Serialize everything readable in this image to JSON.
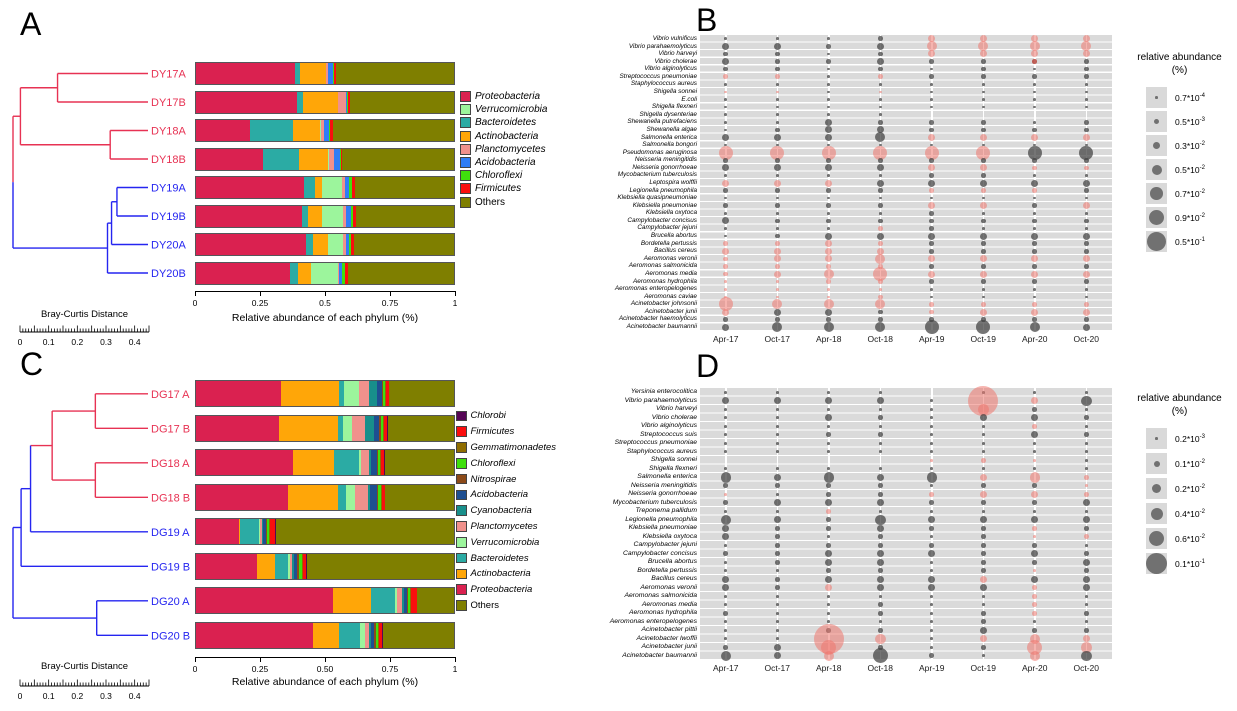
{
  "figure": {
    "panel_letters": {
      "a": "A",
      "b": "B",
      "c": "C",
      "d": "D"
    }
  },
  "chart_data": [
    {
      "id": "dendrogram_A",
      "type": "dendrogram",
      "panel": "A",
      "axis_title": "Bray-Curtis Distance",
      "axis_ticks": [
        "0",
        "0.1",
        "0.2",
        "0.3",
        "0.4"
      ],
      "axis_max": 0.45,
      "leaves": [
        {
          "label": "DY17A",
          "color": "#E73253"
        },
        {
          "label": "DY17B",
          "color": "#E73253"
        },
        {
          "label": "DY18A",
          "color": "#E73253"
        },
        {
          "label": "DY18B",
          "color": "#E73253"
        },
        {
          "label": "DY19A",
          "color": "#2525F0"
        },
        {
          "label": "DY19B",
          "color": "#2525F0"
        },
        {
          "label": "DY20A",
          "color": "#2525F0"
        },
        {
          "label": "DY20B",
          "color": "#2525F0"
        }
      ],
      "merges": [
        {
          "a": 0,
          "b": 1,
          "x": 0.33,
          "color": "#E73253"
        },
        {
          "a": 2,
          "b": 3,
          "x": 0.72,
          "color": "#E73253"
        },
        {
          "a": -1,
          "b": -2,
          "x": 0.055,
          "color": "#E73253"
        },
        {
          "a": 4,
          "b": 5,
          "x": 0.77,
          "color": "#2525F0"
        },
        {
          "a": -4,
          "b": 6,
          "x": 0.73,
          "color": "#2525F0"
        },
        {
          "a": -5,
          "b": 7,
          "x": 0.7,
          "color": "#2525F0"
        },
        {
          "a": -3,
          "b": -6,
          "x": 0.0,
          "color": "split"
        }
      ]
    },
    {
      "id": "bars_A",
      "type": "bar",
      "stacked": true,
      "orientation": "horizontal",
      "panel": "A",
      "categories": [
        "DY17A",
        "DY17B",
        "DY18A",
        "DY18B",
        "DY19A",
        "DY19B",
        "DY20A",
        "DY20B"
      ],
      "series": [
        {
          "name": "Proteobacteria",
          "color": "#DA2150",
          "values": [
            0.385,
            0.39,
            0.21,
            0.26,
            0.42,
            0.41,
            0.425,
            0.365
          ]
        },
        {
          "name": "Bacteroidetes",
          "color": "#2BABA4",
          "values": [
            0.02,
            0.025,
            0.165,
            0.14,
            0.04,
            0.025,
            0.03,
            0.03
          ]
        },
        {
          "name": "Actinobacteria",
          "color": "#FFA608",
          "values": [
            0.1,
            0.135,
            0.105,
            0.11,
            0.03,
            0.055,
            0.055,
            0.05
          ]
        },
        {
          "name": "Verrucomicrobia",
          "color": "#9CF59C",
          "values": [
            0.0,
            0.0,
            0.005,
            0.005,
            0.075,
            0.08,
            0.06,
            0.105
          ]
        },
        {
          "name": "Planctomycetes",
          "color": "#F0918C",
          "values": [
            0.005,
            0.03,
            0.013,
            0.02,
            0.012,
            0.012,
            0.012,
            0.005
          ]
        },
        {
          "name": "Acidobacteria",
          "color": "#2F7DF6",
          "values": [
            0.02,
            0.005,
            0.018,
            0.022,
            0.015,
            0.018,
            0.012,
            0.012
          ]
        },
        {
          "name": "Chloroflexi",
          "color": "#3FE00D",
          "values": [
            0.004,
            0.003,
            0.004,
            0.004,
            0.012,
            0.01,
            0.006,
            0.01
          ]
        },
        {
          "name": "Firmicutes",
          "color": "#FA0E0E",
          "values": [
            0.01,
            0.01,
            0.01,
            0.006,
            0.013,
            0.012,
            0.012,
            0.012
          ]
        },
        {
          "name": "Others",
          "color": "#7F7F00",
          "values": [
            0.456,
            0.402,
            0.47,
            0.433,
            0.383,
            0.378,
            0.388,
            0.411
          ]
        }
      ],
      "legend_order": [
        "Proteobacteria",
        "Verrucomicrobia",
        "Bacteroidetes",
        "Actinobacteria",
        "Planctomycetes",
        "Acidobacteria",
        "Chloroflexi",
        "Firmicutes",
        "Others"
      ],
      "x_ticks": [
        "0",
        "0.25",
        "0.5",
        "0.75",
        "1"
      ],
      "xlabel": "Relative abundance of each phylum (%)",
      "xlim": [
        0,
        1
      ]
    },
    {
      "id": "bubbles_B",
      "type": "bubble",
      "panel": "B",
      "x_categories": [
        "Apr-17",
        "Oct-17",
        "Apr-18",
        "Oct-18",
        "Apr-19",
        "Oct-19",
        "Apr-20",
        "Oct-20"
      ],
      "y_categories": [
        "Vibrio vulnificus",
        "Vibrio parahaemolyticus",
        "Vibrio harveyi",
        "Vibrio cholerae",
        "Vibrio alginolyticus",
        "Streptococcus pneumoniae",
        "Staphylococcus aureus",
        "Shigella sonnei",
        "E.coli",
        "Shigella flexneri",
        "Shigella dysenteriae",
        "Shewanella putrefaciens",
        "Shewanella algae",
        "Salmonella enterica",
        "Salmonella bongori",
        "Pseudomonas aeruginosa",
        "Neisseria meningitidis",
        "Neisseria gonorrhoeae",
        "Mycobacterium tuberculosis",
        "Leptospira wolffii",
        "Legionella pneumophila",
        "Klebsiella quasipneumoniae",
        "Klebsiella pneumoniae",
        "Klebsiella oxytoca",
        "Campylobacter concisus",
        "Campylobacter jejuni",
        "Brucella abortus",
        "Bordetella pertussis",
        "Bacillus cereus",
        "Aeromonas veronii",
        "Aeromonas salmonicida",
        "Aeromonas media",
        "Aeromonas hydrophila",
        "Aeromonas enteropelogenes",
        "Aeromonas caviae",
        "Acinetobacter johnsonii",
        "Acinetobacter junii",
        "Acinetobacter haemolyticus",
        "Acinetobacter baumannii"
      ],
      "cells": [
        "1g 1g 1g 2g 3p 3p 3p 3p",
        "3g 3g 2g 3g 4p 4p 4p 4p",
        "2g 2g 1g 2g 3p 3p 3p 3p",
        "3g 2g 2g 3g 2g 2g 2r 2g",
        "2g 2g 1g 2g 1g 2g 1g 2g",
        "2p 2p 1g 2p 2g 2g 2g 2g",
        "1g 1g 1g 1g 1g 1g 1g 1g",
        "1p 1p 1g 1p 1g 1g 1g 1g",
        "1g 1g 1g 1g 1g 1g 1g 1g",
        "1g 1g 1g 1g 1g 1g 1g 1g",
        "1g 1g 1g 1g 0g 0g 0g 0g",
        "1g 1g 3g 2g 2g 2g 1g 2g",
        "1g 2g 3g 3g 2g 2g 2g 2g",
        "3g 3g 3g 4g 3p 3p 3p 3p",
        "1g 1g 1g 1g 1g 1g 1g 1g",
        "5p 5p 5p 5p 5p 5p 5g 5g",
        "2g 2g 2g 2g 2g 2g 2g 2g",
        "3g 3g 3g 3g 3p 3p 2p 2p",
        "1g 1g 1g 1g 2g 2g 1g 1g",
        "3p 3p 3p 3g 3g 3g 3g 3g",
        "2g 2g 2g 2g 2p 2p 2p 2g",
        "1g 1g 1g 1g 1g 1g 1g 1g",
        "2g 2g 2g 2g 3p 3p 2g 3p",
        "1g 1g 1g 1g 2g 1g 1g 1g",
        "3g 2g 2g 2g 2g 2g 2g 2g",
        "1g 1g 1g 2p 2g 1g 1g 1g",
        "1g 2g 3g 3g 3g 3g 3g 3g",
        "2p 2p 3p 2p 2g 2g 2g 2g",
        "3p 3p 3p 3p 2g 2g 2g 2g",
        "2p 3p 3p 4p 3p 3p 3p 3p",
        "2p 2p 2p 2p 2g 2g 2g 2g",
        "2p 3p 4p 5p 3p 3p 3p 3p",
        "1p 1p 2p 2p 2g 2g 2g 2g",
        "1p 1p 1p 1p 1g 1g 1g 1g",
        "1p 1p 1p 2p 1g 1g 1g 1g",
        "5p 4p 4p 4p 2p 2p 2p 2p",
        "3p 3g 3g 2g 2p 3p 3p 3p",
        "2g 2g 2g 2g 2g 2g 2g 2g",
        "3g 4g 4g 4g 5g 5g 4g 3g"
      ],
      "size_classes": {
        "1": 2.6,
        "2": 4.6,
        "3": 7,
        "4": 10,
        "5": 14,
        "6": 20
      },
      "point_colors": {
        "g": "rgba(64,64,64,0.72)",
        "p": "rgba(238,118,110,0.55)",
        "r": "rgba(178,58,48,0.8)"
      },
      "legend": {
        "title": "relative abundance",
        "subtitle": "(%)",
        "labels": [
          [
            "0.7*10",
            "-4"
          ],
          [
            "0.5*10",
            "-3"
          ],
          [
            "0.3*10",
            "-2"
          ],
          [
            "0.5*10",
            "-2"
          ],
          [
            "0.7*10",
            "-2"
          ],
          [
            "0.9*10",
            "-2"
          ],
          [
            "0.5*10",
            "-1"
          ]
        ],
        "diameters": [
          2.6,
          5,
          7.5,
          10,
          12.5,
          15,
          19
        ]
      }
    },
    {
      "id": "dendrogram_C",
      "type": "dendrogram",
      "panel": "C",
      "axis_title": "Bray-Curtis Distance",
      "axis_ticks": [
        "0",
        "0.1",
        "0.2",
        "0.3",
        "0.4"
      ],
      "axis_max": 0.45,
      "leaves": [
        {
          "label": "DG17 A",
          "color": "#E73253"
        },
        {
          "label": "DG17 B",
          "color": "#E73253"
        },
        {
          "label": "DG18 A",
          "color": "#E73253"
        },
        {
          "label": "DG18 B",
          "color": "#E73253"
        },
        {
          "label": "DG19 A",
          "color": "#2525F0"
        },
        {
          "label": "DG19 B",
          "color": "#2525F0"
        },
        {
          "label": "DG20 A",
          "color": "#2525F0"
        },
        {
          "label": "DG20 B",
          "color": "#2525F0"
        }
      ],
      "merges": [
        {
          "a": 0,
          "b": 1,
          "x": 0.61,
          "color": "#E73253"
        },
        {
          "a": 2,
          "b": 3,
          "x": 0.61,
          "color": "#E73253"
        },
        {
          "a": -1,
          "b": -2,
          "x": 0.29,
          "color": "#E73253"
        },
        {
          "a": -3,
          "b": 4,
          "x": 0.13,
          "color": "#2525F0"
        },
        {
          "a": -4,
          "b": 5,
          "x": 0.06,
          "color": "#2525F0"
        },
        {
          "a": 6,
          "b": 7,
          "x": 0.62,
          "color": "#2525F0"
        },
        {
          "a": -5,
          "b": -6,
          "x": 0.0,
          "color": "#2525F0"
        }
      ]
    },
    {
      "id": "bars_C",
      "type": "bar",
      "stacked": true,
      "orientation": "horizontal",
      "panel": "C",
      "categories": [
        "DG17 A",
        "DG17 B",
        "DG18 A",
        "DG18 B",
        "DG19 A",
        "DG19 B",
        "DG20 A",
        "DG20 B"
      ],
      "series": [
        {
          "name": "Proteobacteria",
          "color": "#DA2150",
          "values": [
            0.33,
            0.32,
            0.375,
            0.355,
            0.165,
            0.235,
            0.53,
            0.455
          ]
        },
        {
          "name": "Actinobacteria",
          "color": "#FFA608",
          "values": [
            0.225,
            0.23,
            0.16,
            0.195,
            0.005,
            0.07,
            0.15,
            0.1
          ]
        },
        {
          "name": "Bacteroidetes",
          "color": "#2BABA4",
          "values": [
            0.02,
            0.02,
            0.095,
            0.03,
            0.075,
            0.05,
            0.09,
            0.08
          ]
        },
        {
          "name": "Verrucomicrobia",
          "color": "#9CF59C",
          "values": [
            0.055,
            0.035,
            0.01,
            0.035,
            0.005,
            0.008,
            0.01,
            0.02
          ]
        },
        {
          "name": "Planctomycetes",
          "color": "#F0918C",
          "values": [
            0.04,
            0.05,
            0.03,
            0.05,
            0.005,
            0.008,
            0.02,
            0.015
          ]
        },
        {
          "name": "Cyanobacteria",
          "color": "#188F8B",
          "values": [
            0.03,
            0.035,
            0.01,
            0.01,
            0.005,
            0.01,
            0.008,
            0.01
          ]
        },
        {
          "name": "Acidobacteria",
          "color": "#1E4F91",
          "values": [
            0.02,
            0.02,
            0.02,
            0.025,
            0.01,
            0.012,
            0.01,
            0.012
          ]
        },
        {
          "name": "Nitrospirae",
          "color": "#8C4A19",
          "values": [
            0.005,
            0.006,
            0.005,
            0.006,
            0.004,
            0.005,
            0.004,
            0.005
          ]
        },
        {
          "name": "Chloroflexi",
          "color": "#3FE00D",
          "values": [
            0.008,
            0.01,
            0.008,
            0.01,
            0.01,
            0.012,
            0.008,
            0.01
          ]
        },
        {
          "name": "Gemmatimonadetes",
          "color": "#8F6D00",
          "values": [
            0.004,
            0.004,
            0.004,
            0.004,
            0.004,
            0.005,
            0.004,
            0.004
          ]
        },
        {
          "name": "Firmicutes",
          "color": "#FA0E0E",
          "values": [
            0.01,
            0.012,
            0.012,
            0.012,
            0.02,
            0.012,
            0.022,
            0.012
          ]
        },
        {
          "name": "Chlorobi",
          "color": "#550655",
          "values": [
            0.002,
            0.002,
            0.002,
            0.002,
            0.002,
            0.003,
            0.002,
            0.002
          ]
        },
        {
          "name": "Others",
          "color": "#7F7F00",
          "values": [
            0.251,
            0.256,
            0.269,
            0.266,
            0.69,
            0.57,
            0.142,
            0.275
          ]
        }
      ],
      "legend_order": [
        "Chlorobi",
        "Firmicutes",
        "Gemmatimonadetes",
        "Chloroflexi",
        "Nitrospirae",
        "Acidobacteria",
        "Cyanobacteria",
        "Planctomycetes",
        "Verrucomicrobia",
        "Bacteroidetes",
        "Actinobacteria",
        "Proteobacteria",
        "Others"
      ],
      "x_ticks": [
        "0",
        "0.25",
        "0.50",
        "0.75",
        "1"
      ],
      "xlabel": "Relative abundance of each phylum (%)",
      "xlim": [
        0,
        1
      ]
    },
    {
      "id": "bubbles_D",
      "type": "bubble",
      "panel": "D",
      "x_categories": [
        "Apr-17",
        "Oct-17",
        "Apr-18",
        "Oct-18",
        "Apr-19",
        "Oct-19",
        "Apr-20",
        "Oct-20"
      ],
      "y_categories": [
        "Yersinia enterocolitica",
        "Vibrio parahaemolyticus",
        "Vibrio harveyi",
        "Vibrio cholerae",
        "Vibrio alginolyticus",
        "Streptococcus suis",
        "Streptococcus pneumoniae",
        "Staphylococcus aureus",
        "Shigella sonnei",
        "Shigella flexneri",
        "Salmonella enterica",
        "Neisseria meningitidis",
        "Neisseria gonorrhoeae",
        "Mycobacterium tuberculosis",
        "Treponema pallidum",
        "Legionella pneumophila",
        "Klebsiella pneumoniae",
        "Klebsiella oxytoca",
        "Campylobacter jejuni",
        "Campylobacter concisus",
        "Brucella abortus",
        "Bordetella pertussis",
        "Bacillus cereus",
        "Aeromonas veronii",
        "Aeromonas salmonicida",
        "Aeromonas media",
        "Aeromonas hydrophila",
        "Aeromonas enteropelogenes",
        "Acinetobacter pittii",
        "Acinetobacter lwoffii",
        "Acinetobacter junii",
        "Acinetobacter baumannii"
      ],
      "cells": [
        "1g 1g 1g 1g 0g 1g 1g 1g",
        "3g 3g 3g 3g 1g 6p 3p 4g",
        "1g 1g 1g 1g 1g 4p 2g 1g",
        "1g 1g 3g 2g 1g 3g 3g 2g",
        "1g 1g 1g 1g 1g 1g 2p 1g",
        "1g 1g 2g 2g 1g 1g 3g 2g",
        "1g 1g 1g 1g 1g 1g 1g 1g",
        "1g 1g 1g 1g 1g 1g 1g 1g",
        "0g 0g 0g 0g 1p 2p 1p 1g",
        "1g 1g 1g 1g 1g 1g 1g 1g",
        "4g 3g 4g 3g 4g 3p 4p 2p",
        "2g 2g 2g 2g 1g 2g 2g 1p",
        "1p 1g 2g 2g 2p 3p 3p 2p",
        "2g 3g 3g 3g 2g 2g 2g 3g",
        "1g 1g 2p 1g 1g 1g 1g 1g",
        "4g 3g 2g 4g 3g 3g 3g 3g",
        "3g 2g 2g 3g 2g 2g 2p 2g",
        "3g 2g 1g 2g 1g 2g 1p 2p",
        "1g 2g 2g 2g 2g 2g 2g 1g",
        "2g 2g 3g 3g 3g 2g 3g 2g",
        "1g 2g 3g 3g 1g 2g 2g 3g",
        "1g 1g 2g 2g 1g 2g 1p 2g",
        "3g 2g 3g 3g 3g 3p 3g 3g",
        "3g 2g 3p 3g 3g 3g 2p 3g",
        "1g 1g 1g 1g 1g 1g 2p 1g",
        "1g 1g 1g 2g 1g 1g 2p 1g",
        "2g 1g 1g 2g 1g 2g 2p 2g",
        "1g 1g 1g 1g 1g 2g 1g 1g",
        "1g 1g 2g 2g 1g 3g 2g 2g",
        "1g 1g 6p 4p 1g 3p 4p 3p",
        "2g 3g 5p 2g 1g 2g 5p 4p",
        "4g 3g 4p 5g 2g 1g 4p 4g"
      ],
      "size_classes": {
        "1": 2.6,
        "2": 4.6,
        "3": 7,
        "4": 10.5,
        "5": 15,
        "6": 30
      },
      "point_colors": {
        "g": "rgba(64,64,64,0.72)",
        "p": "rgba(238,118,110,0.55)",
        "r": "rgba(178,58,48,0.8)"
      },
      "legend": {
        "title": "relative abundance",
        "subtitle": "(%)",
        "labels": [
          [
            "0.2*10",
            "-3"
          ],
          [
            "0.1*10",
            "-2"
          ],
          [
            "0.2*10",
            "-2"
          ],
          [
            "0.4*10",
            "-2"
          ],
          [
            "0.6*10",
            "-2"
          ],
          [
            "0.1*10",
            "-1"
          ]
        ],
        "diameters": [
          2.6,
          6,
          9,
          12,
          15,
          21
        ]
      }
    }
  ]
}
